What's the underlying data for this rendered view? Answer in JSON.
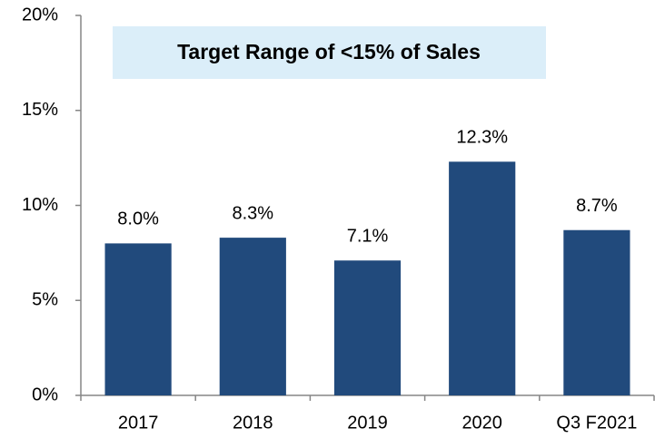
{
  "chart_data": {
    "type": "bar",
    "annotation": "Target Range of <15% of Sales",
    "categories": [
      "2017",
      "2018",
      "2019",
      "2020",
      "Q3 F2021"
    ],
    "values": [
      8.0,
      8.3,
      7.1,
      12.3,
      8.7
    ],
    "value_labels": [
      "8.0%",
      "8.3%",
      "7.1%",
      "12.3%",
      "8.7%"
    ],
    "color": "#214a7c",
    "ylim": [
      0,
      20
    ],
    "yticks": [
      {
        "value": 0,
        "label": "0%"
      },
      {
        "value": 5,
        "label": "5%"
      },
      {
        "value": 10,
        "label": "10%"
      },
      {
        "value": 15,
        "label": "15%"
      },
      {
        "value": 20,
        "label": "20%"
      }
    ],
    "grid": false
  }
}
